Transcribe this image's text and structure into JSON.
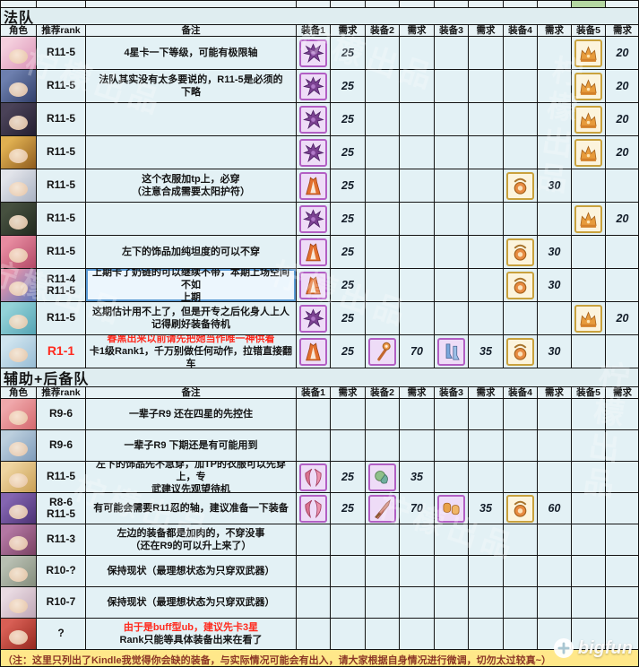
{
  "columns": [
    "角色",
    "推荐rank",
    "备注",
    "装备1",
    "需求",
    "装备2",
    "需求",
    "装备3",
    "需求",
    "装备4",
    "需求",
    "装备5",
    "需求"
  ],
  "sections": [
    {
      "title": "法队",
      "rows": [
        {
          "avatar": {
            "c1": "#f4cfdd",
            "c2": "#db93b7"
          },
          "rank": {
            "lines": [
              "R11-5"
            ]
          },
          "note": {
            "lines": [
              {
                "t": "4星卡一下等级，可能有极限轴"
              }
            ]
          },
          "slots": [
            {
              "icon": "purple-crest",
              "need": 25
            },
            null,
            null,
            null,
            {
              "icon": "gold-crown",
              "need": 20
            }
          ]
        },
        {
          "avatar": {
            "c1": "#6d7fae",
            "c2": "#32406b"
          },
          "rank": {
            "lines": [
              "R11-5"
            ]
          },
          "note": {
            "lines": [
              {
                "t": "法队其实没有太多要说的，R11-5是必须的"
              },
              {
                "t": "下略"
              }
            ]
          },
          "slots": [
            {
              "icon": "purple-crest",
              "need": 25
            },
            null,
            null,
            null,
            {
              "icon": "gold-crown",
              "need": 20
            }
          ]
        },
        {
          "avatar": {
            "c1": "#4a4258",
            "c2": "#241f31"
          },
          "rank": {
            "lines": [
              "R11-5"
            ]
          },
          "note": {
            "lines": []
          },
          "slots": [
            {
              "icon": "purple-crest",
              "need": 25
            },
            null,
            null,
            null,
            {
              "icon": "gold-crown",
              "need": 20
            }
          ]
        },
        {
          "avatar": {
            "c1": "#e0b051",
            "c2": "#8f5c1e"
          },
          "rank": {
            "lines": [
              "R11-5"
            ]
          },
          "note": {
            "lines": []
          },
          "slots": [
            {
              "icon": "purple-crest",
              "need": 25
            },
            null,
            null,
            null,
            {
              "icon": "gold-crown",
              "need": 20
            }
          ]
        },
        {
          "avatar": {
            "c1": "#e2e4ea",
            "c2": "#a9b2c2"
          },
          "rank": {
            "lines": [
              "R11-5"
            ]
          },
          "note": {
            "lines": [
              {
                "t": "这个衣服加tp上，必穿"
              },
              {
                "t": "（注意合成需要太阳护符）"
              }
            ]
          },
          "slots": [
            {
              "icon": "orange-dress",
              "need": 25
            },
            null,
            null,
            {
              "icon": "gold-amulet",
              "need": 30
            },
            null
          ]
        },
        {
          "avatar": {
            "c1": "#46503f",
            "c2": "#232b20"
          },
          "rank": {
            "lines": [
              "R11-5"
            ]
          },
          "note": {
            "lines": []
          },
          "slots": [
            {
              "icon": "purple-crest",
              "need": 25
            },
            null,
            null,
            null,
            {
              "icon": "gold-crown",
              "need": 20
            }
          ]
        },
        {
          "avatar": {
            "c1": "#e78ba0",
            "c2": "#b34a67"
          },
          "rank": {
            "lines": [
              "R11-5"
            ]
          },
          "note": {
            "lines": [
              {
                "t": "左下的饰品加纯坦度的可以不穿"
              }
            ]
          },
          "slots": [
            {
              "icon": "orange-dress",
              "need": 25
            },
            null,
            null,
            {
              "icon": "gold-amulet",
              "need": 30
            },
            null
          ]
        },
        {
          "avatar": {
            "c1": "#e495ad",
            "c2": "#5d79ba"
          },
          "rank": {
            "lines": [
              "R11-4",
              "R11-5"
            ]
          },
          "hl": true,
          "note": {
            "lines": [
              {
                "t": "上期卡了奶链的可以继续不带，本期上场空间不如"
              },
              {
                "t": "上期"
              }
            ]
          },
          "slots": [
            {
              "icon": "orange-dress",
              "need": 25
            },
            null,
            null,
            {
              "icon": "gold-amulet",
              "need": 30
            },
            null
          ]
        },
        {
          "avatar": {
            "c1": "#93d2d8",
            "c2": "#55a4b4"
          },
          "rank": {
            "lines": [
              "R11-5"
            ]
          },
          "note": {
            "lines": [
              {
                "t": "这期估计用不上了，但是开专之后化身人上人"
              },
              {
                "t": "记得刷好装备待机"
              }
            ]
          },
          "slots": [
            {
              "icon": "purple-crest",
              "need": 25
            },
            null,
            null,
            null,
            {
              "icon": "gold-crown",
              "need": 20
            }
          ]
        },
        {
          "avatar": {
            "c1": "#cfe4ef",
            "c2": "#97bcd4"
          },
          "rank": {
            "lines": [
              "R1-1"
            ],
            "red": true
          },
          "note": {
            "lines": [
              {
                "t": "春黑出来以前请先把她当作唯一神供着",
                "red": true
              },
              {
                "t": "卡1级Rank1，千万别做任何动作，拉错直接翻车"
              }
            ]
          },
          "slots": [
            {
              "icon": "orange-dress",
              "need": 25
            },
            {
              "icon": "orange-staff",
              "need": 70
            },
            {
              "icon": "blue-boots",
              "need": 35
            },
            {
              "icon": "gold-amulet",
              "need": 30
            },
            null
          ]
        }
      ]
    },
    {
      "title": "辅助+后备队",
      "rows": [
        {
          "avatar": {
            "c1": "#f0a8ab",
            "c2": "#d4696e"
          },
          "rank": {
            "lines": [
              "R9-6"
            ]
          },
          "note": {
            "lines": [
              {
                "t": "一辈子R9 还在四星的先控住"
              }
            ]
          },
          "slots": [
            null,
            null,
            null,
            null,
            null
          ]
        },
        {
          "avatar": {
            "c1": "#bccfde",
            "c2": "#7f9cba"
          },
          "rank": {
            "lines": [
              "R9-6"
            ]
          },
          "note": {
            "lines": [
              {
                "t": "一辈子R9 下期还是有可能用到"
              }
            ]
          },
          "slots": [
            null,
            null,
            null,
            null,
            null
          ]
        },
        {
          "avatar": {
            "c1": "#eed4a0",
            "c2": "#caa054"
          },
          "rank": {
            "lines": [
              "R11-5"
            ]
          },
          "note": {
            "lines": [
              {
                "t": "左下的饰品先不急穿，加TP的衣服可以先穿上，专"
              },
              {
                "t": "武建议先观望待机"
              }
            ]
          },
          "slots": [
            {
              "icon": "pink-wings",
              "need": 25
            },
            {
              "icon": "green-charm",
              "need": 35
            },
            null,
            null,
            null
          ]
        },
        {
          "avatar": {
            "c1": "#8465b1",
            "c2": "#4c3375"
          },
          "rank": {
            "lines": [
              "R8-6",
              "R11-5"
            ]
          },
          "note": {
            "lines": [
              {
                "t": "有可能会需要R11忍的轴，建议准备一下装备"
              }
            ]
          },
          "slots": [
            {
              "icon": "pink-wings",
              "need": 25
            },
            {
              "icon": "red-sword",
              "need": 70
            },
            {
              "icon": "orange-gloves",
              "need": 35
            },
            {
              "icon": "gold-amulet",
              "need": 60
            },
            null
          ]
        },
        {
          "avatar": {
            "c1": "#b377a3",
            "c2": "#7a4263"
          },
          "rank": {
            "lines": [
              "R11-3"
            ]
          },
          "note": {
            "lines": [
              {
                "t": "左边的装备都是加肉的，不穿没事"
              },
              {
                "t": "（还在R9的可以升上来了）"
              }
            ]
          },
          "slots": [
            null,
            null,
            null,
            null,
            null
          ]
        },
        {
          "avatar": {
            "c1": "#b8bfb2",
            "c2": "#848d7c"
          },
          "rank": {
            "lines": [
              "R10-?"
            ]
          },
          "note": {
            "lines": [
              {
                "t": "保持现状（最理想状态为只穿双武器）"
              }
            ]
          },
          "slots": [
            null,
            null,
            null,
            null,
            null
          ]
        },
        {
          "avatar": {
            "c1": "#e9dae2",
            "c2": "#bfa7b6"
          },
          "rank": {
            "lines": [
              "R10-7"
            ]
          },
          "note": {
            "lines": [
              {
                "t": "保持现状（最理想状态为只穿双武器）"
              }
            ]
          },
          "slots": [
            null,
            null,
            null,
            null,
            null
          ]
        },
        {
          "avatar": {
            "c1": "#d85f55",
            "c2": "#97291f"
          },
          "rank": {
            "lines": [
              "?"
            ]
          },
          "note": {
            "lines": [
              {
                "t": "由于是buff型ub，建议先卡3星",
                "red": true
              },
              {
                "t": "Rank只能等具体装备出来在看了"
              }
            ]
          },
          "slots": [
            null,
            null,
            null,
            null,
            null
          ]
        }
      ]
    }
  ],
  "footer": {
    "text": "（注：这里只列出了Kindle我觉得你会缺的装备，与实际情况可能会有出入，请大家根据自身情况进行微调，切勿太过较真~）"
  },
  "watermark": {
    "text": "柠檬出品"
  },
  "logo": {
    "text": "bigfun"
  },
  "colors": {
    "red_text": "#ff2a1e",
    "footer_bg": "#ffe88a",
    "purple_frame": "#b25fc4",
    "gold_frame": "#c9a23d",
    "highlight_border": "#5b9bd5",
    "cell_bg": "#e3f1f5"
  }
}
